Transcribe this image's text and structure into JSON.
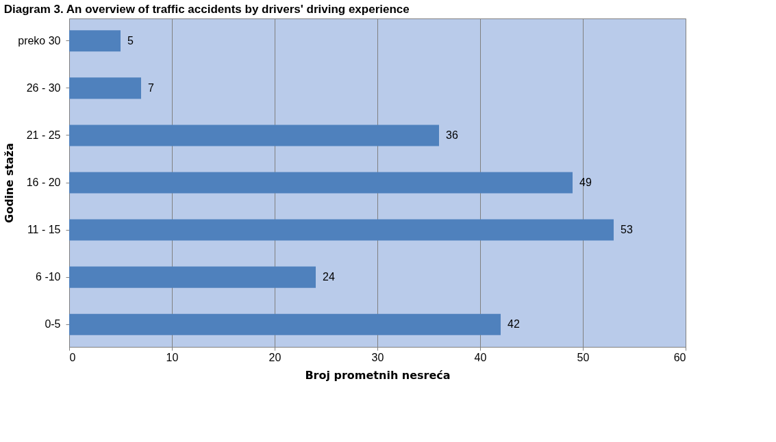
{
  "chart_data": {
    "type": "bar",
    "orientation": "horizontal",
    "title": "Diagram 3. An overview of traffic accidents by drivers' driving experience",
    "categories": [
      "preko 30",
      "26 - 30",
      "21 - 25",
      "16 - 20",
      "11 - 15",
      "6 -10",
      "0-5"
    ],
    "values": [
      5,
      7,
      36,
      49,
      53,
      24,
      42
    ],
    "color": "#4f81bd",
    "xlim": [
      0,
      60
    ],
    "xticks": [
      0,
      10,
      20,
      30,
      40,
      50,
      60
    ],
    "xlabel": "Broj prometnih nesreća",
    "ylabel": "Godine staža",
    "grid": "x",
    "data_labels": true
  }
}
